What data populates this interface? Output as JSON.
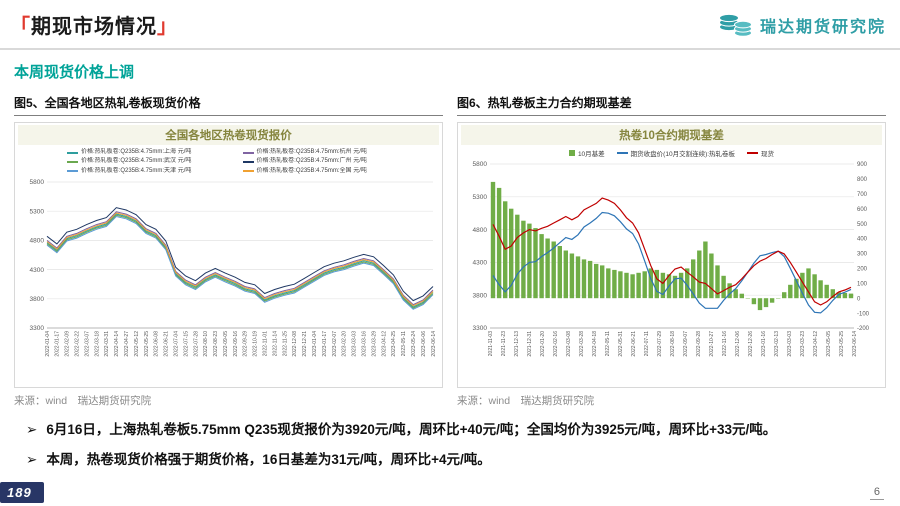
{
  "theme": {
    "brand": "#2f9ea6",
    "accent_red": "#e03a2f",
    "subtitle_green": "#00a398"
  },
  "page": {
    "header": {
      "bracket_left": "「",
      "title": "期现市场情况",
      "bracket_right": "」",
      "logo_text": "瑞达期货研究院"
    },
    "subtitle": "本周现货价格上调",
    "bullet_marker": "➢",
    "bullets": [
      "6月16日，上海热轧卷板5.75mm Q235现货报价为3920元/吨，周环比+40元/吨；全国均价为3925元/吨，周环比+33元/吨。",
      "本周，热卷现货价格强于期货价格，16日基差为31元/吨，周环比+4元/吨。"
    ],
    "watermark": "189",
    "page_number": "6"
  },
  "figure5": {
    "caption": "图5、全国各地区热轧卷板现货价格",
    "source": "来源：wind　瑞达期货研究院"
  },
  "figure6": {
    "caption": "图6、热轧卷板主力合约期现基差",
    "source": "来源：wind　瑞达期货研究院"
  },
  "chart_data": [
    {
      "type": "line",
      "title": "全国各地区热卷现货报价",
      "ylim": [
        3300,
        5800
      ],
      "y_ticks": [
        3300,
        3800,
        4300,
        4800,
        5300,
        5800
      ],
      "grid": true,
      "legend_position": "top",
      "x_ticks": [
        "2022-01-04",
        "2022-01-17",
        "2022-02-09",
        "2022-02-22",
        "2022-03-07",
        "2022-03-18",
        "2022-03-31",
        "2022-04-14",
        "2022-04-27",
        "2022-05-12",
        "2022-05-25",
        "2022-06-08",
        "2022-06-21",
        "2022-07-04",
        "2022-07-15",
        "2022-07-28",
        "2022-08-10",
        "2022-08-23",
        "2022-09-05",
        "2022-09-16",
        "2022-09-29",
        "2022-10-19",
        "2022-11-01",
        "2022-11-14",
        "2022-11-25",
        "2022-12-08",
        "2022-12-21",
        "2023-01-04",
        "2023-01-17",
        "2023-02-07",
        "2023-02-20",
        "2023-03-03",
        "2023-03-16",
        "2023-03-29",
        "2023-04-12",
        "2023-04-25",
        "2023-05-11",
        "2023-05-24",
        "2023-06-06",
        "2023-06-14"
      ],
      "series": [
        {
          "name": "价格:热轧板卷:Q235B:4.75mm:上海 元/吨",
          "color": "#2e9e9e",
          "values": [
            4760,
            4630,
            4830,
            4880,
            4960,
            5030,
            5080,
            5250,
            5210,
            5130,
            4960,
            4880,
            4680,
            4230,
            4080,
            4000,
            4130,
            4210,
            4130,
            4060,
            3970,
            3930,
            3780,
            3850,
            3900,
            3940,
            4040,
            4140,
            4240,
            4300,
            4340,
            4400,
            4450,
            4410,
            4260,
            4100,
            3820,
            3660,
            3740,
            3920
          ]
        },
        {
          "name": "价格:热轧板卷:Q235B:4.75mm:杭州 元/吨",
          "color": "#8064a2",
          "values": [
            4800,
            4670,
            4870,
            4920,
            5000,
            5070,
            5120,
            5290,
            5250,
            5170,
            5000,
            4920,
            4720,
            4270,
            4120,
            4040,
            4170,
            4250,
            4170,
            4100,
            4010,
            3970,
            3820,
            3890,
            3940,
            3980,
            4080,
            4180,
            4280,
            4340,
            4380,
            4440,
            4490,
            4450,
            4300,
            4140,
            3860,
            3700,
            3780,
            3950
          ]
        },
        {
          "name": "价格:热轧板卷:Q235B:4.75mm:武汉 元/吨",
          "color": "#6aa84f",
          "values": [
            4740,
            4610,
            4810,
            4860,
            4940,
            5010,
            5060,
            5230,
            5190,
            5110,
            4940,
            4860,
            4660,
            4210,
            4060,
            3980,
            4110,
            4190,
            4110,
            4040,
            3950,
            3910,
            3760,
            3830,
            3880,
            3920,
            4020,
            4120,
            4220,
            4280,
            4320,
            4380,
            4430,
            4390,
            4240,
            4080,
            3800,
            3640,
            3720,
            3890
          ]
        },
        {
          "name": "价格:热轧板卷:Q235B:4.75mm:广州 元/吨",
          "color": "#1f3864",
          "values": [
            4870,
            4740,
            4940,
            4990,
            5070,
            5140,
            5190,
            5360,
            5320,
            5240,
            5070,
            4990,
            4790,
            4340,
            4190,
            4110,
            4240,
            4320,
            4240,
            4170,
            4080,
            4040,
            3890,
            3960,
            4010,
            4050,
            4150,
            4250,
            4350,
            4410,
            4450,
            4510,
            4560,
            4520,
            4370,
            4210,
            3930,
            3770,
            3850,
            4010
          ]
        },
        {
          "name": "价格:热轧板卷:Q235B:4.75mm:天津 元/吨",
          "color": "#5b9bd5",
          "values": [
            4720,
            4590,
            4790,
            4840,
            4920,
            4990,
            5040,
            5210,
            5170,
            5090,
            4920,
            4840,
            4640,
            4190,
            4040,
            3960,
            4090,
            4170,
            4090,
            4020,
            3930,
            3890,
            3740,
            3810,
            3860,
            3900,
            4000,
            4100,
            4200,
            4260,
            4300,
            4360,
            4410,
            4370,
            4220,
            4060,
            3780,
            3620,
            3700,
            3870
          ]
        },
        {
          "name": "价格:热轧板卷:Q235B:4.75mm:全国 元/吨",
          "color": "#f0a132",
          "values": [
            4780,
            4650,
            4850,
            4900,
            4980,
            5050,
            5100,
            5270,
            5230,
            5150,
            4980,
            4900,
            4700,
            4250,
            4100,
            4020,
            4150,
            4230,
            4150,
            4080,
            3990,
            3950,
            3800,
            3870,
            3920,
            3960,
            4060,
            4160,
            4260,
            4320,
            4360,
            4420,
            4470,
            4430,
            4280,
            4120,
            3840,
            3680,
            3760,
            3925
          ]
        }
      ]
    },
    {
      "type": "combo",
      "title": "热卷10合约期现基差",
      "ylim_left": [
        3300,
        5800
      ],
      "y_ticks_left": [
        3300,
        3800,
        4300,
        4800,
        5300,
        5800
      ],
      "ylim_right": [
        -200,
        900
      ],
      "y_ticks_right": [
        -200,
        -100,
        0,
        100,
        200,
        300,
        400,
        500,
        600,
        700,
        800,
        900
      ],
      "grid": true,
      "legend_position": "top",
      "x_ticks": [
        "2021-11-03",
        "2021-11-23",
        "2021-12-13",
        "2021-12-31",
        "2022-01-20",
        "2022-02-16",
        "2022-03-08",
        "2022-03-28",
        "2022-04-18",
        "2022-05-11",
        "2022-05-31",
        "2022-06-21",
        "2022-07-11",
        "2022-07-29",
        "2022-08-18",
        "2022-09-07",
        "2022-09-28",
        "2022-10-27",
        "2022-11-16",
        "2022-12-06",
        "2022-12-26",
        "2023-01-16",
        "2023-02-13",
        "2023-03-03",
        "2023-03-23",
        "2023-04-12",
        "2023-05-05",
        "2023-05-25",
        "2023-06-14"
      ],
      "bar_series": {
        "name": "10月基差",
        "color": "#70ad47",
        "axis": "right",
        "values": [
          780,
          740,
          650,
          600,
          560,
          520,
          500,
          470,
          430,
          400,
          380,
          350,
          320,
          300,
          280,
          260,
          250,
          230,
          220,
          200,
          190,
          180,
          170,
          160,
          170,
          180,
          200,
          190,
          170,
          160,
          150,
          170,
          200,
          260,
          320,
          380,
          300,
          220,
          150,
          100,
          60,
          30,
          0,
          -40,
          -80,
          -60,
          -30,
          0,
          40,
          90,
          130,
          170,
          200,
          160,
          120,
          90,
          60,
          40,
          35,
          31
        ]
      },
      "line_series": [
        {
          "name": "期货收盘价(10月交割连续):热轧卷板",
          "color": "#2e75b6",
          "axis": "left",
          "values": [
            4100,
            3960,
            3850,
            3950,
            4120,
            4230,
            4300,
            4310,
            4390,
            4450,
            4520,
            4600,
            4680,
            4650,
            4720,
            4840,
            4900,
            4970,
            5060,
            5050,
            5010,
            4920,
            4810,
            4740,
            4580,
            4320,
            4050,
            3860,
            3810,
            3940,
            4050,
            4060,
            3950,
            3820,
            3680,
            3600,
            3600,
            3600,
            3720,
            3820,
            3900,
            4020,
            4150,
            4290,
            4400,
            4420,
            4450,
            4470,
            4390,
            4210,
            4020,
            3830,
            3650,
            3540,
            3530,
            3610,
            3720,
            3810,
            3845,
            3889
          ]
        },
        {
          "name": "现货",
          "color": "#c00000",
          "axis": "left",
          "values": [
            4880,
            4700,
            4500,
            4550,
            4680,
            4750,
            4800,
            4780,
            4820,
            4850,
            4900,
            4950,
            5000,
            4950,
            5000,
            5100,
            5150,
            5200,
            5280,
            5250,
            5200,
            5100,
            4980,
            4900,
            4750,
            4500,
            4250,
            4050,
            3980,
            4100,
            4200,
            4230,
            4150,
            4080,
            4000,
            3980,
            3900,
            3820,
            3870,
            3920,
            3960,
            4050,
            4150,
            4250,
            4320,
            4360,
            4420,
            4470,
            4430,
            4300,
            4150,
            4000,
            3850,
            3700,
            3650,
            3700,
            3780,
            3850,
            3880,
            3920
          ]
        }
      ]
    }
  ]
}
